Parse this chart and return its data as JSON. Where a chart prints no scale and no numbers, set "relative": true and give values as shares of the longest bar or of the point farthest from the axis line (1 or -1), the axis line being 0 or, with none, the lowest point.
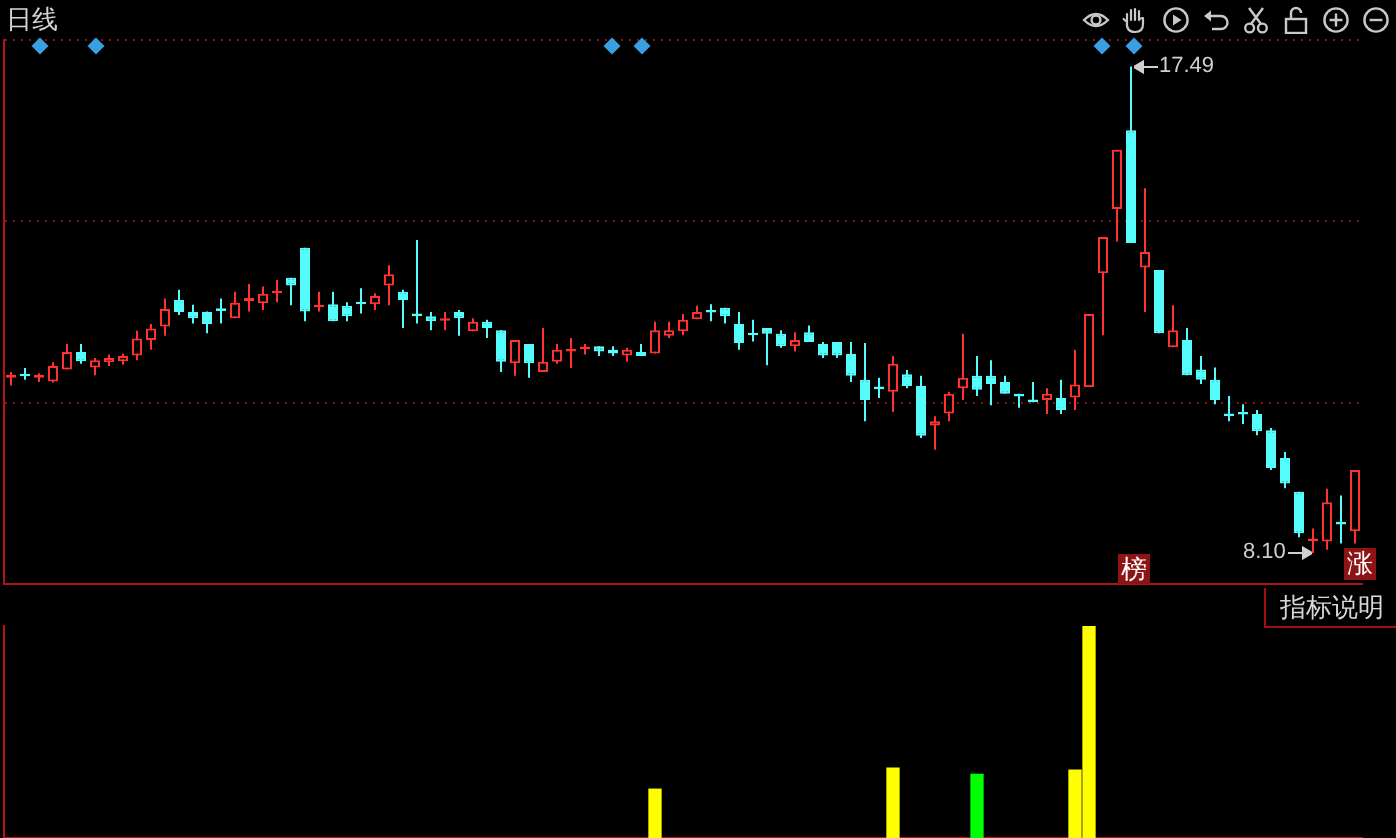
{
  "chart_data": [
    {
      "type": "candlestick",
      "title": "日线",
      "categories": [
        null,
        null,
        null,
        null,
        null,
        null,
        null,
        null,
        null,
        null,
        null,
        null,
        null,
        null,
        null,
        null,
        null,
        null,
        null,
        null,
        null,
        null,
        null,
        null,
        null,
        null,
        null,
        null,
        null,
        null,
        null,
        null,
        null,
        null,
        null,
        null,
        null,
        null,
        null,
        null,
        null,
        null,
        null,
        null,
        null,
        null,
        null,
        null,
        null,
        null,
        null,
        null,
        null,
        null,
        null,
        null,
        null,
        null,
        null,
        null,
        null,
        null,
        null,
        null,
        null,
        null,
        null,
        null,
        null,
        null,
        null,
        null,
        null,
        null,
        null,
        null,
        null,
        null,
        null,
        null,
        null,
        null,
        null,
        null,
        null,
        null,
        null,
        null,
        null,
        null,
        null,
        null,
        null,
        null,
        null,
        null,
        null
      ],
      "ohlc": [
        [
          11.48,
          11.59,
          11.33,
          11.54
        ],
        [
          11.56,
          11.67,
          11.44,
          11.51
        ],
        [
          11.48,
          11.57,
          11.4,
          11.54
        ],
        [
          11.41,
          11.78,
          11.39,
          11.71
        ],
        [
          11.64,
          12.13,
          11.64,
          11.98
        ],
        [
          11.98,
          12.13,
          11.75,
          11.8
        ],
        [
          11.68,
          11.86,
          11.53,
          11.82
        ],
        [
          11.78,
          11.93,
          11.71,
          11.86
        ],
        [
          11.8,
          11.95,
          11.73,
          11.9
        ],
        [
          11.91,
          12.39,
          11.82,
          12.24
        ],
        [
          12.21,
          12.52,
          12.02,
          12.43
        ],
        [
          12.47,
          13.01,
          12.29,
          12.81
        ],
        [
          12.98,
          13.18,
          12.69,
          12.75
        ],
        [
          12.75,
          12.89,
          12.53,
          12.63
        ],
        [
          12.75,
          12.76,
          12.34,
          12.52
        ],
        [
          12.82,
          13.01,
          12.53,
          12.77
        ],
        [
          12.63,
          13.14,
          12.63,
          12.93
        ],
        [
          12.96,
          13.29,
          12.76,
          13.02
        ],
        [
          12.92,
          13.24,
          12.79,
          13.1
        ],
        [
          13.11,
          13.37,
          12.94,
          13.16
        ],
        [
          13.41,
          13.41,
          12.88,
          13.26
        ],
        [
          13.99,
          13.99,
          12.57,
          12.76
        ],
        [
          12.84,
          13.14,
          12.76,
          12.89
        ],
        [
          12.9,
          13.14,
          12.57,
          12.57
        ],
        [
          12.87,
          12.94,
          12.57,
          12.67
        ],
        [
          12.95,
          13.21,
          12.72,
          12.9
        ],
        [
          12.9,
          13.11,
          12.79,
          13.06
        ],
        [
          13.26,
          13.65,
          12.88,
          13.48
        ],
        [
          13.14,
          13.18,
          12.44,
          12.98
        ],
        [
          12.72,
          14.14,
          12.53,
          12.67
        ],
        [
          12.67,
          12.75,
          12.4,
          12.57
        ],
        [
          12.58,
          12.75,
          12.4,
          12.63
        ],
        [
          12.75,
          12.79,
          12.29,
          12.63
        ],
        [
          12.38,
          12.63,
          12.38,
          12.56
        ],
        [
          12.56,
          12.6,
          12.25,
          12.44
        ],
        [
          12.4,
          12.4,
          11.59,
          11.79
        ],
        [
          11.76,
          12.21,
          11.52,
          12.21
        ],
        [
          12.13,
          12.13,
          11.48,
          11.76
        ],
        [
          11.59,
          12.44,
          11.59,
          11.79
        ],
        [
          11.79,
          12.13,
          11.75,
          12.02
        ],
        [
          11.99,
          12.25,
          11.67,
          12.04
        ],
        [
          12.03,
          12.13,
          11.93,
          12.08
        ],
        [
          12.09,
          12.09,
          11.9,
          11.99
        ],
        [
          12.02,
          12.09,
          11.9,
          11.95
        ],
        [
          11.91,
          12.06,
          11.79,
          12.02
        ],
        [
          11.98,
          12.13,
          11.9,
          11.9
        ],
        [
          11.95,
          12.56,
          11.95,
          12.4
        ],
        [
          12.29,
          12.56,
          12.25,
          12.4
        ],
        [
          12.38,
          12.71,
          12.3,
          12.6
        ],
        [
          12.61,
          12.87,
          12.61,
          12.75
        ],
        [
          12.79,
          12.9,
          12.57,
          12.74
        ],
        [
          12.83,
          12.83,
          12.53,
          12.67
        ],
        [
          12.52,
          12.75,
          12.02,
          12.15
        ],
        [
          12.35,
          12.6,
          12.18,
          12.3
        ],
        [
          12.44,
          12.44,
          11.72,
          12.33
        ],
        [
          12.33,
          12.4,
          12.06,
          12.09
        ],
        [
          12.09,
          12.36,
          11.99,
          12.21
        ],
        [
          12.36,
          12.49,
          12.17,
          12.17
        ],
        [
          12.13,
          12.17,
          11.86,
          11.91
        ],
        [
          12.17,
          12.17,
          11.86,
          11.91
        ],
        [
          11.94,
          12.17,
          11.4,
          11.52
        ],
        [
          11.44,
          12.15,
          10.64,
          11.05
        ],
        [
          11.31,
          11.48,
          11.09,
          11.26
        ],
        [
          11.21,
          11.9,
          10.82,
          11.75
        ],
        [
          11.55,
          11.63,
          11.28,
          11.32
        ],
        [
          11.32,
          11.52,
          10.32,
          10.36
        ],
        [
          10.56,
          10.74,
          10.09,
          10.64
        ],
        [
          10.79,
          11.21,
          10.64,
          11.17
        ],
        [
          11.28,
          12.33,
          11.05,
          11.48
        ],
        [
          11.52,
          11.9,
          11.13,
          11.25
        ],
        [
          11.52,
          11.82,
          10.95,
          11.36
        ],
        [
          11.4,
          11.52,
          11.17,
          11.17
        ],
        [
          11.17,
          11.17,
          10.9,
          11.12
        ],
        [
          11.06,
          11.4,
          11.01,
          11.01
        ],
        [
          11.05,
          11.28,
          10.78,
          11.17
        ],
        [
          11.09,
          11.44,
          10.78,
          10.86
        ],
        [
          11.1,
          12.02,
          10.86,
          11.35
        ],
        [
          11.3,
          12.71,
          11.3,
          12.71
        ],
        [
          13.5,
          14.2,
          12.3,
          14.2
        ],
        [
          14.74,
          15.88,
          14.11,
          15.88
        ],
        [
          16.26,
          17.49,
          14.08,
          14.08
        ],
        [
          13.61,
          15.14,
          12.75,
          13.91
        ],
        [
          13.56,
          13.56,
          12.34,
          12.34
        ],
        [
          12.07,
          12.88,
          12.07,
          12.4
        ],
        [
          12.21,
          12.44,
          11.53,
          11.53
        ],
        [
          11.64,
          11.9,
          11.36,
          11.44
        ],
        [
          11.44,
          11.68,
          10.97,
          11.05
        ],
        [
          10.79,
          11.13,
          10.64,
          10.74
        ],
        [
          10.82,
          10.97,
          10.59,
          10.77
        ],
        [
          10.78,
          10.86,
          10.37,
          10.45
        ],
        [
          10.47,
          10.51,
          9.7,
          9.74
        ],
        [
          9.93,
          10.05,
          9.35,
          9.44
        ],
        [
          9.28,
          9.28,
          8.4,
          8.48
        ],
        [
          8.33,
          8.57,
          8.1,
          8.38
        ],
        [
          8.32,
          9.34,
          8.16,
          9.08
        ],
        [
          8.7,
          9.21,
          8.28,
          8.65
        ],
        [
          8.52,
          9.7,
          8.28,
          9.7
        ]
      ],
      "colors": [
        "#ff3232",
        "#54fcfc",
        "#ff3232",
        "#ff3232",
        "#ff3232",
        "#54fcfc",
        "#ff3232",
        "#ff3232",
        "#ff3232",
        "#ff3232",
        "#ff3232",
        "#ff3232",
        "#54fcfc",
        "#54fcfc",
        "#54fcfc",
        "#54fcfc",
        "#ff3232",
        "#ff3232",
        "#ff3232",
        "#ff3232",
        "#54fcfc",
        "#54fcfc",
        "#ff3232",
        "#54fcfc",
        "#54fcfc",
        "#54fcfc",
        "#ff3232",
        "#ff3232",
        "#54fcfc",
        "#54fcfc",
        "#54fcfc",
        "#ff3232",
        "#54fcfc",
        "#ff3232",
        "#54fcfc",
        "#54fcfc",
        "#ff3232",
        "#54fcfc",
        "#ff3232",
        "#ff3232",
        "#ff3232",
        "#ff3232",
        "#54fcfc",
        "#54fcfc",
        "#ff3232",
        "#54fcfc",
        "#ff3232",
        "#ff3232",
        "#ff3232",
        "#ff3232",
        "#54fcfc",
        "#54fcfc",
        "#54fcfc",
        "#54fcfc",
        "#54fcfc",
        "#54fcfc",
        "#ff3232",
        "#54fcfc",
        "#54fcfc",
        "#54fcfc",
        "#54fcfc",
        "#54fcfc",
        "#54fcfc",
        "#ff3232",
        "#54fcfc",
        "#54fcfc",
        "#ff3232",
        "#ff3232",
        "#ff3232",
        "#54fcfc",
        "#54fcfc",
        "#54fcfc",
        "#54fcfc",
        "#54fcfc",
        "#ff3232",
        "#54fcfc",
        "#ff3232",
        "#ff3232",
        "#ff3232",
        "#ff3232",
        "#54fcfc",
        "#ff3232",
        "#54fcfc",
        "#ff3232",
        "#54fcfc",
        "#54fcfc",
        "#54fcfc",
        "#54fcfc",
        "#54fcfc",
        "#54fcfc",
        "#54fcfc",
        "#54fcfc",
        "#54fcfc",
        "#ff3232",
        "#ff3232",
        "#54fcfc",
        "#ff3232"
      ],
      "ylim": [
        7.5,
        18
      ],
      "yticks": [
        {
          "value": 11,
          "label": null
        },
        {
          "value": 14.5,
          "label": null
        },
        {
          "value": 18,
          "label": null
        }
      ],
      "grid": "y",
      "tick_labels": false,
      "annotations": [
        "17.49",
        "8.10",
        "榜",
        "涨"
      ]
    },
    {
      "type": "bar",
      "relative": true,
      "categories": [
        null,
        null,
        null,
        null,
        null,
        null,
        null,
        null,
        null,
        null,
        null,
        null,
        null,
        null,
        null,
        null,
        null,
        null,
        null,
        null,
        null,
        null,
        null,
        null,
        null,
        null,
        null,
        null,
        null,
        null,
        null,
        null,
        null,
        null,
        null,
        null,
        null,
        null,
        null,
        null,
        null,
        null,
        null,
        null,
        null,
        null,
        null,
        null,
        null,
        null,
        null,
        null,
        null,
        null,
        null,
        null,
        null,
        null,
        null,
        null,
        null,
        null,
        null,
        null,
        null,
        null,
        null,
        null,
        null,
        null,
        null,
        null,
        null,
        null,
        null,
        null,
        null,
        null,
        null,
        null,
        null,
        null,
        null,
        null,
        null,
        null,
        null,
        null,
        null,
        null,
        null,
        null,
        null,
        null,
        null,
        null,
        null
      ],
      "values": [
        null,
        null,
        null,
        null,
        null,
        null,
        null,
        null,
        null,
        null,
        null,
        null,
        null,
        null,
        null,
        null,
        null,
        null,
        null,
        null,
        null,
        null,
        null,
        null,
        null,
        null,
        null,
        null,
        null,
        null,
        null,
        null,
        null,
        null,
        null,
        null,
        null,
        null,
        null,
        null,
        null,
        null,
        null,
        null,
        null,
        null,
        0.23,
        null,
        null,
        null,
        null,
        null,
        null,
        null,
        null,
        null,
        null,
        null,
        null,
        null,
        null,
        null,
        null,
        0.33,
        null,
        null,
        null,
        null,
        null,
        0.3,
        null,
        null,
        null,
        null,
        null,
        null,
        0.32,
        1,
        null,
        null,
        null,
        null,
        null,
        null,
        null,
        null,
        null,
        null,
        null,
        null,
        null,
        null,
        null,
        null,
        null,
        null,
        null
      ],
      "colors": [
        null,
        null,
        null,
        null,
        null,
        null,
        null,
        null,
        null,
        null,
        null,
        null,
        null,
        null,
        null,
        null,
        null,
        null,
        null,
        null,
        null,
        null,
        null,
        null,
        null,
        null,
        null,
        null,
        null,
        null,
        null,
        null,
        null,
        null,
        null,
        null,
        null,
        null,
        null,
        null,
        null,
        null,
        null,
        null,
        null,
        null,
        "#ffff00",
        null,
        null,
        null,
        null,
        null,
        null,
        null,
        null,
        null,
        null,
        null,
        null,
        null,
        null,
        null,
        null,
        "#ffff00",
        null,
        null,
        null,
        null,
        null,
        "#00ff00",
        null,
        null,
        null,
        null,
        null,
        null,
        "#ffff00",
        "#ffff00",
        null,
        null,
        null,
        null,
        null,
        null,
        null,
        null,
        null,
        null,
        null,
        null,
        null,
        null,
        null,
        null,
        null,
        null,
        null
      ],
      "tick_labels": false,
      "annotations": [
        "指标说明"
      ]
    }
  ]
}
